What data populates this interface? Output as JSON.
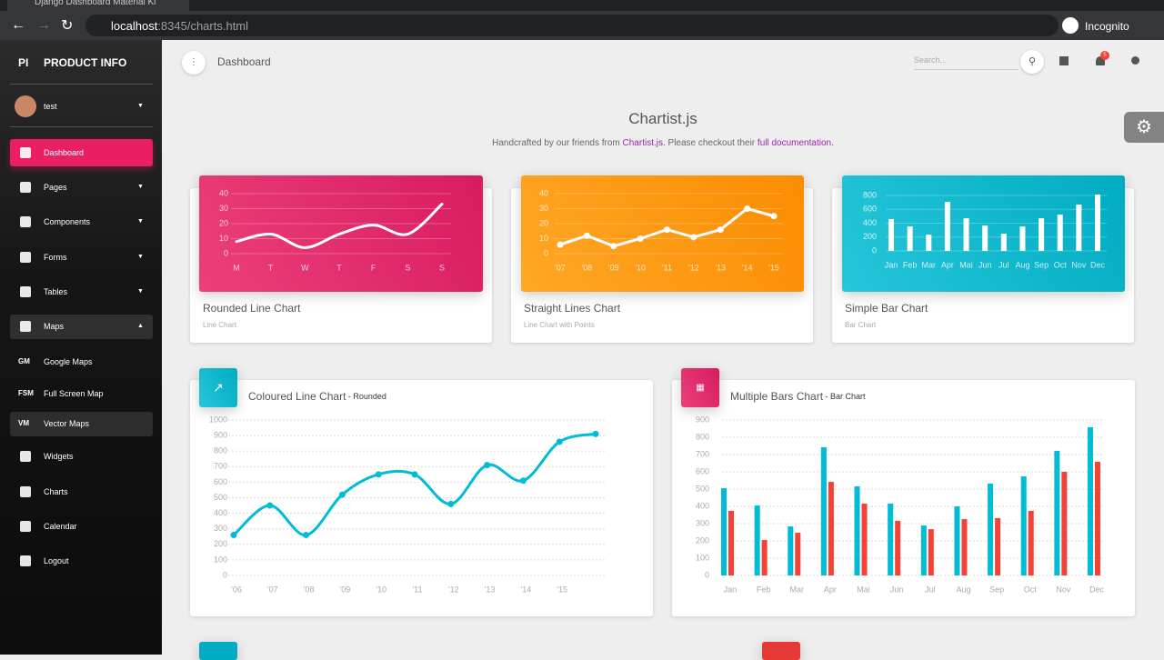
{
  "browser": {
    "tab_title": "Django Dashboard Material Ki",
    "url_host": "localhost",
    "url_path": ":8345/charts.html",
    "profile": "Incognito"
  },
  "sidebar": {
    "logo_short": "PI",
    "logo_text": "PRODUCT INFO",
    "user": "test",
    "menu": [
      {
        "label": "Dashboard"
      },
      {
        "label": "Pages"
      },
      {
        "label": "Components"
      },
      {
        "label": "Forms"
      },
      {
        "label": "Tables"
      },
      {
        "label": "Maps"
      },
      {
        "abbr": "GM",
        "label": "Google Maps"
      },
      {
        "abbr": "FSM",
        "label": "Full Screen Map"
      },
      {
        "abbr": "VM",
        "label": "Vector Maps"
      },
      {
        "label": "Widgets"
      },
      {
        "label": "Charts"
      },
      {
        "label": "Calendar"
      },
      {
        "label": "Logout"
      }
    ]
  },
  "header": {
    "title": "Dashboard",
    "search_placeholder": "Search...",
    "notification_count": "5"
  },
  "page": {
    "title": "Chartist.js",
    "subtitle_before": "Handcrafted by our friends from ",
    "subtitle_link": "Chartist.js",
    "subtitle_middle": ". Please checkout their ",
    "subtitle_link2": "full documentation",
    "subtitle_after": "."
  },
  "chart_data": [
    {
      "type": "line",
      "title": "Rounded Line Chart",
      "subtitle": "Line Chart",
      "smooth": true,
      "points": false,
      "color": "#ffffff",
      "grid": true,
      "categories": [
        "M",
        "T",
        "W",
        "T",
        "F",
        "S",
        "S"
      ],
      "values": [
        8,
        13,
        4,
        13,
        19,
        13,
        33
      ],
      "ylim": [
        0,
        40
      ],
      "yticks": [
        0,
        10,
        20,
        30,
        40
      ]
    },
    {
      "type": "line",
      "title": "Straight Lines Chart",
      "subtitle": "Line Chart with Points",
      "smooth": false,
      "points": true,
      "color": "#ffffff",
      "grid": true,
      "categories": [
        "'07",
        "'08",
        "'09",
        "'10",
        "'11",
        "'12",
        "'13",
        "'14",
        "'15"
      ],
      "values": [
        6,
        12,
        5,
        10,
        16,
        11,
        16,
        30,
        25
      ],
      "ylim": [
        0,
        40
      ],
      "yticks": [
        0,
        10,
        20,
        30,
        40
      ]
    },
    {
      "type": "bar",
      "title": "Simple Bar Chart",
      "subtitle": "Bar Chart",
      "color": "#ffffff",
      "grid": true,
      "categories": [
        "Jan",
        "Feb",
        "Mar",
        "Apr",
        "Mai",
        "Jun",
        "Jul",
        "Aug",
        "Sep",
        "Oct",
        "Nov",
        "Dec"
      ],
      "values": [
        459,
        354,
        236,
        708,
        472,
        367,
        249,
        354,
        472,
        525,
        669,
        813
      ],
      "ylim": [
        0,
        800
      ],
      "yticks": [
        0,
        200,
        400,
        600,
        800
      ]
    },
    {
      "type": "line",
      "title": "Coloured Line Chart",
      "subtitle": " - Rounded",
      "smooth": true,
      "points": true,
      "color": "#00bcd4",
      "grid": true,
      "categories": [
        "'06",
        "'07",
        "'08",
        "'09",
        "'10",
        "'11",
        "'12",
        "'13",
        "'14",
        "'15",
        null
      ],
      "values": [
        260,
        450,
        260,
        520,
        650,
        650,
        460,
        710,
        610,
        860,
        910
      ],
      "ylim": [
        0,
        1000
      ],
      "yticks": [
        0,
        100,
        200,
        300,
        400,
        500,
        600,
        700,
        800,
        900,
        1000
      ]
    },
    {
      "type": "grouped-bar",
      "title": "Multiple Bars Chart",
      "subtitle": " - Bar Chart",
      "grid": true,
      "categories": [
        "Jan",
        "Feb",
        "Mar",
        "Apr",
        "Mai",
        "Jun",
        "Jul",
        "Aug",
        "Sep",
        "Oct",
        "Nov",
        "Dec"
      ],
      "series": [
        {
          "color": "#00bcd4",
          "values": [
            505,
            405,
            284,
            742,
            516,
            416,
            289,
            400,
            532,
            574,
            721,
            858
          ]
        },
        {
          "color": "#f44336",
          "values": [
            374,
            205,
            247,
            542,
            416,
            316,
            268,
            326,
            332,
            374,
            600,
            658
          ]
        }
      ],
      "ylim": [
        0,
        900
      ],
      "yticks": [
        0,
        100,
        200,
        300,
        400,
        500,
        600,
        700,
        800,
        900
      ]
    }
  ]
}
